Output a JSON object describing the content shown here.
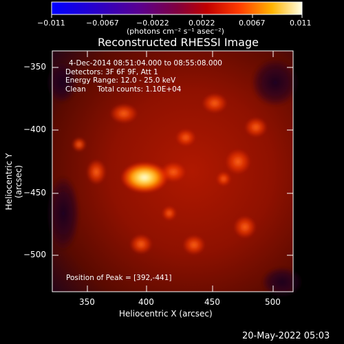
{
  "colorbar": {
    "ticks": [
      "−0.011",
      "−0.0067",
      "−0.0022",
      "0.0022",
      "0.0067",
      "0.011"
    ],
    "units_label": "(photons cm⁻² s⁻¹ asec⁻²)"
  },
  "plot": {
    "title": "Reconstructed RHESSI Image",
    "info_lines": [
      "4-Dec-2014 08:51:04.000 to 08:55:08.000",
      "Detectors: 3F 6F 9F, Att 1",
      "Energy Range: 12.0 - 25.0 keV",
      "Clean     Total counts: 1.10E+04"
    ],
    "peak_text": "Position of Peak = [392,-441]",
    "xlabel": "Heliocentric X (arcsec)",
    "ylabel": "Heliocentric Y (arcsec)",
    "x_ticks": [
      "350",
      "400",
      "450",
      "500"
    ],
    "y_ticks": [
      "−350",
      "−400",
      "−450",
      "−500"
    ]
  },
  "footer": {
    "timestamp": "20-May-2022 05:03"
  }
}
